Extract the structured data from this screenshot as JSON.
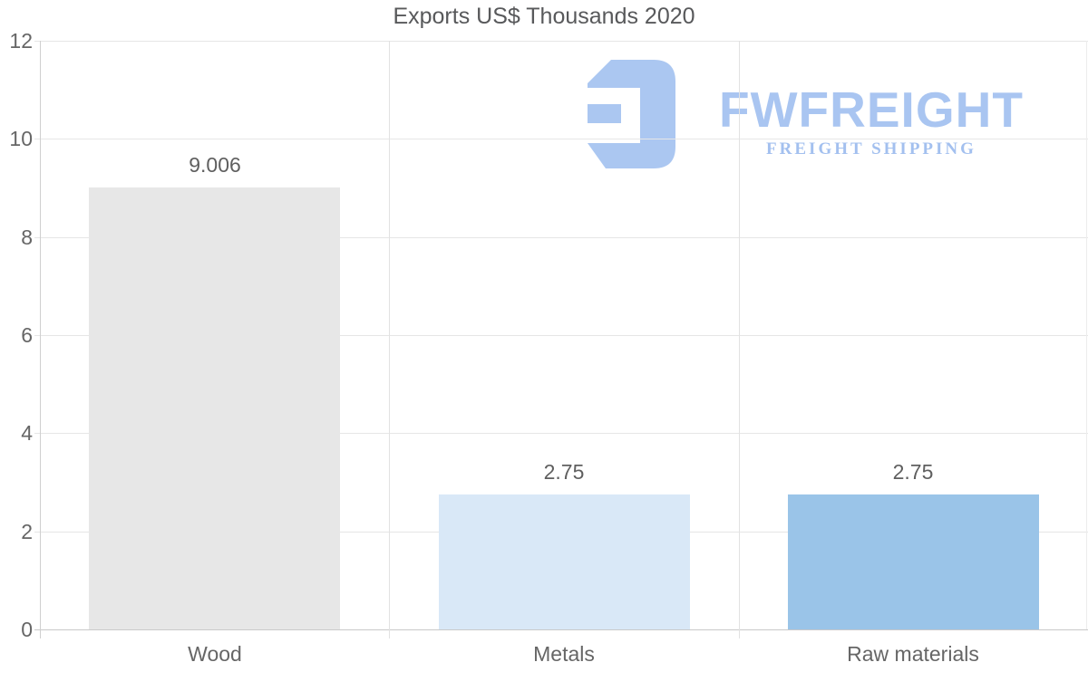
{
  "chart_data": {
    "type": "bar",
    "title": "Exports US$ Thousands 2020",
    "categories": [
      "Wood",
      "Metals",
      "Raw materials"
    ],
    "values": [
      9.006,
      2.75,
      2.75
    ],
    "data_labels": [
      "9.006",
      "2.75",
      "2.75"
    ],
    "bar_colors": [
      "#e7e7e7",
      "#d9e8f7",
      "#9ac4e8"
    ],
    "xlabel": "",
    "ylabel": "",
    "ylim": [
      0,
      12
    ],
    "yticks": [
      0,
      2,
      4,
      6,
      8,
      10,
      12
    ],
    "grid": true,
    "legend": "none"
  },
  "watermark": {
    "brand": "FWFREIGHT",
    "tagline": "FREIGHT SHIPPING",
    "color": "#a9c5f1"
  },
  "style": {
    "grid_color": "#e6e6e6",
    "axis_color": "#cfcfcf",
    "label_color": "#666666",
    "title_color": "#58595b"
  }
}
